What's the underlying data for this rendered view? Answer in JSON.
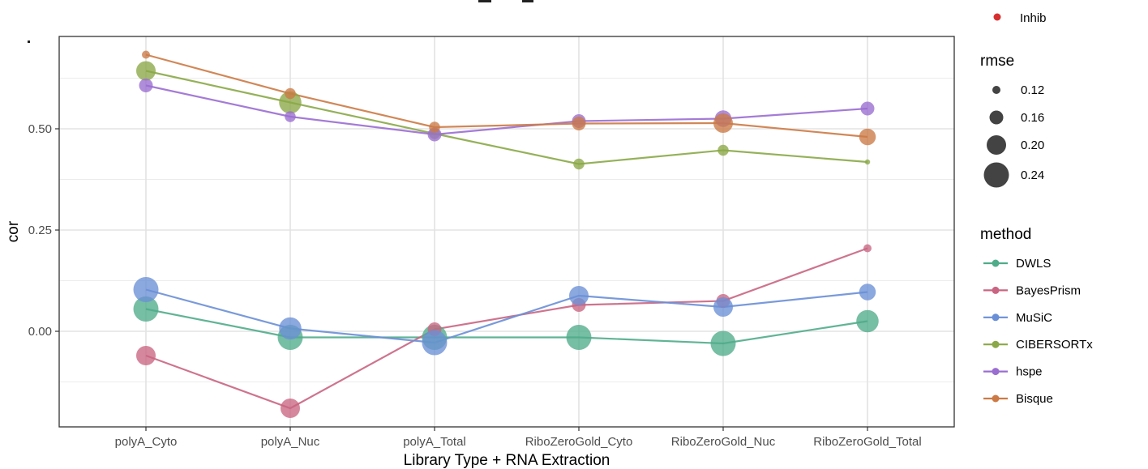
{
  "chart_data": {
    "type": "line",
    "xlabel": "Library Type + RNA Extraction",
    "ylabel": "cor",
    "categories": [
      "polyA_Cyto",
      "polyA_Nuc",
      "polyA_Total",
      "RiboZeroGold_Cyto",
      "RiboZeroGold_Nuc",
      "RiboZeroGold_Total"
    ],
    "y_ticks": [
      0.0,
      0.25,
      0.5
    ],
    "y_tick_labels": [
      "0.00",
      "0.25",
      "0.50"
    ],
    "ylim": [
      -0.235,
      0.73
    ],
    "grid": true,
    "series": [
      {
        "name": "DWLS",
        "color": "#4fac8b",
        "values": [
          0.055,
          -0.015,
          -0.015,
          -0.015,
          -0.03,
          0.025
        ],
        "rmse": [
          0.24,
          0.24,
          0.24,
          0.24,
          0.24,
          0.22
        ]
      },
      {
        "name": "BayesPrism",
        "color": "#c96582",
        "values": [
          -0.06,
          -0.19,
          0.005,
          0.065,
          0.075,
          0.205
        ],
        "rmse": [
          0.2,
          0.2,
          0.16,
          0.16,
          0.16,
          0.12
        ]
      },
      {
        "name": "MuSiC",
        "color": "#6a8fd6",
        "values": [
          0.103,
          0.007,
          -0.028,
          0.088,
          0.06,
          0.097
        ],
        "rmse": [
          0.24,
          0.22,
          0.24,
          0.2,
          0.2,
          0.18
        ]
      },
      {
        "name": "CIBERSORTx",
        "color": "#8aa847",
        "values": [
          0.643,
          0.565,
          0.488,
          0.413,
          0.447,
          0.418
        ],
        "rmse": [
          0.2,
          0.22,
          0.14,
          0.14,
          0.14,
          0.1
        ]
      },
      {
        "name": "hspe",
        "color": "#9a6dd1",
        "values": [
          0.607,
          0.53,
          0.486,
          0.519,
          0.525,
          0.55
        ],
        "rmse": [
          0.16,
          0.14,
          0.16,
          0.16,
          0.18,
          0.16
        ]
      },
      {
        "name": "Bisque",
        "color": "#cc7a45",
        "values": [
          0.683,
          0.587,
          0.504,
          0.513,
          0.514,
          0.48
        ],
        "rmse": [
          0.12,
          0.14,
          0.14,
          0.16,
          0.2,
          0.18
        ]
      }
    ],
    "legend": {
      "placement": "right",
      "partial_top_entry": {
        "label": "Inhib",
        "color": "#d62f2f"
      },
      "size_title": "rmse",
      "size_breaks": [
        0.12,
        0.16,
        0.2,
        0.24
      ],
      "size_labels": [
        "0.12",
        "0.16",
        "0.20",
        "0.24"
      ],
      "color_title": "method"
    }
  }
}
